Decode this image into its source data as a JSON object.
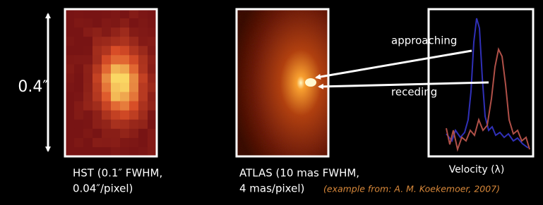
{
  "scale_label": "0.4″",
  "hst_caption": [
    "HST (0.1″ FWHM,",
    "0.04″/pixel)"
  ],
  "atlas_caption": [
    "ATLAS (10 mas FWHM,",
    "4 mas/pixel)"
  ],
  "credit": "(example from:  A. M. Koekemoer, 2007)",
  "labels": {
    "approaching": "approaching",
    "receding": "receding"
  },
  "spectrum_xlabel": "Velocity (λ)"
}
